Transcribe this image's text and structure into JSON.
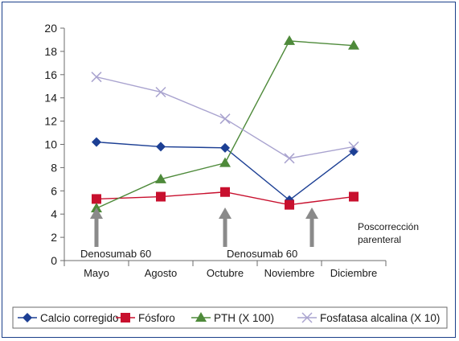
{
  "colors": {
    "frame": "#1a3f8a",
    "axis": "#6b6b6b",
    "text": "#1a1a1a",
    "arrow": "#8a8a8a"
  },
  "chart_data": {
    "type": "line",
    "categories": [
      "Mayo",
      "Agosto",
      "Octubre",
      "Noviembre",
      "Diciembre"
    ],
    "ylim": [
      0,
      20
    ],
    "yticks": [
      0,
      2,
      4,
      6,
      8,
      10,
      12,
      14,
      16,
      18,
      20
    ],
    "series": [
      {
        "name": "Calcio corregido",
        "marker": "diamond",
        "color": "#1c3f94",
        "values": [
          10.2,
          9.8,
          9.7,
          5.2,
          9.4
        ]
      },
      {
        "name": "Fósforo",
        "marker": "square",
        "color": "#c8102e",
        "values": [
          5.3,
          5.5,
          5.9,
          4.8,
          5.5
        ]
      },
      {
        "name": "PTH (X 100)",
        "marker": "triangle",
        "color": "#4e8a3a",
        "values": [
          4.5,
          7.0,
          8.4,
          18.9,
          18.5
        ]
      },
      {
        "name": "Fosfatasa alcalina (X 10)",
        "marker": "x",
        "color": "#a9a3cf",
        "values": [
          15.8,
          14.5,
          12.2,
          8.8,
          9.8
        ]
      }
    ],
    "annotations": [
      {
        "label": "Denosumab 60",
        "arrow_at": 0.25
      },
      {
        "label": "Denosumab 60",
        "arrow_at": 2.5
      },
      {
        "label": "Poscorrección parenteral",
        "arrow_at": 3.85
      }
    ],
    "legend_position": "bottom"
  }
}
